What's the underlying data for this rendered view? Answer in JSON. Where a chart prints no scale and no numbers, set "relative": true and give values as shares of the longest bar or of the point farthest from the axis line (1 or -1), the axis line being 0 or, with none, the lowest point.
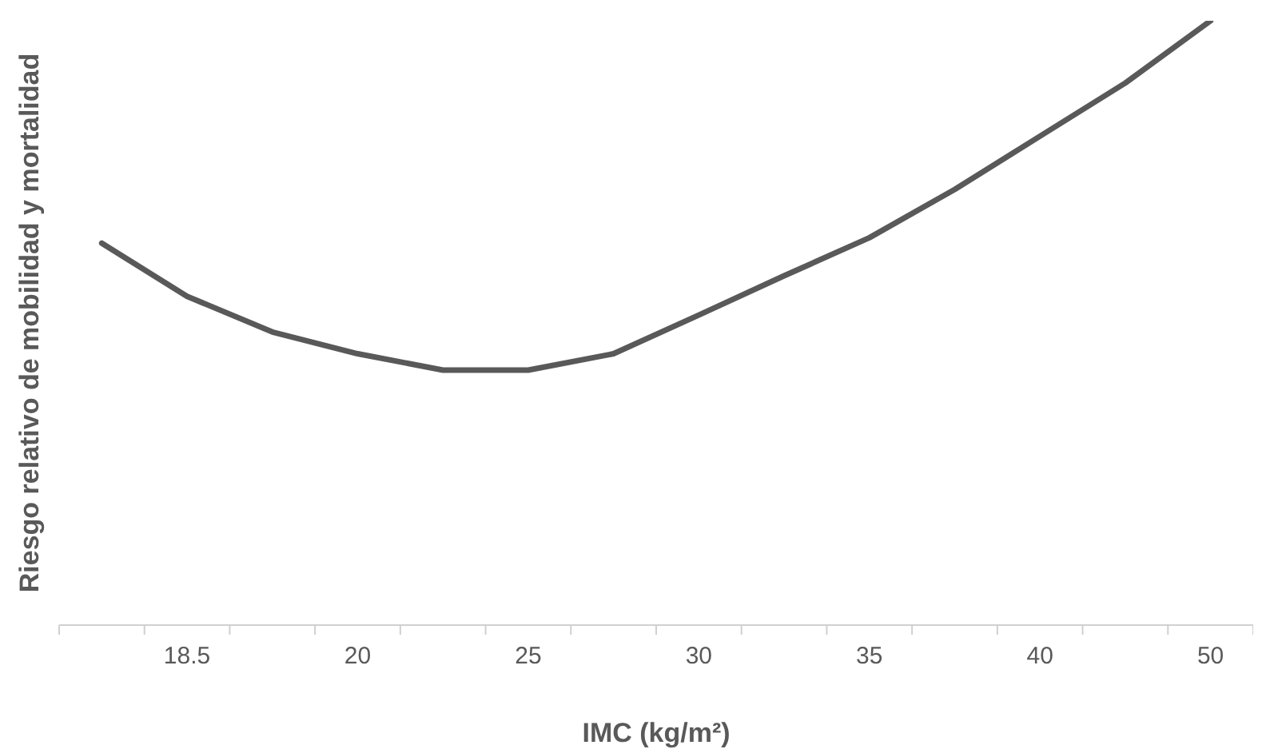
{
  "chart_data": {
    "type": "line",
    "relative": true,
    "xlabel": "IMC (kg/m²)",
    "ylabel": "Riesgo relativo de mobilidad y mortalidad",
    "categories": [
      null,
      "18.5",
      null,
      "20",
      null,
      "25",
      null,
      "30",
      null,
      "35",
      null,
      "40",
      null,
      "50"
    ],
    "series": [
      {
        "color": "#595959",
        "values": [
          0.632,
          0.544,
          0.485,
          0.449,
          0.422,
          0.422,
          0.449,
          0.513,
          0.578,
          0.641,
          0.721,
          0.809,
          0.897,
          1.0
        ]
      }
    ],
    "grid": false,
    "legend": false,
    "marker": "none",
    "line_style": "solid"
  }
}
